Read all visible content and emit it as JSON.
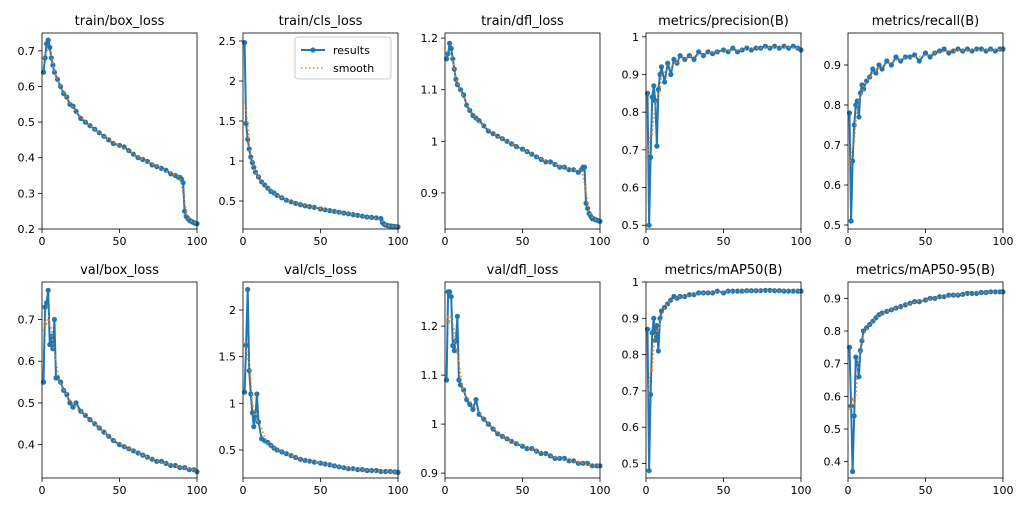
{
  "colors": {
    "results": "#1f77b4",
    "smooth": "#ff7f0e"
  },
  "legend": {
    "results": "results",
    "smooth": "smooth"
  },
  "chart_data": [
    {
      "type": "line",
      "title": "train/box_loss",
      "xlim": [
        0,
        100
      ],
      "ylim": [
        0.2,
        0.75
      ],
      "xticks": [
        0,
        50,
        100
      ],
      "yticks": [
        0.2,
        0.3,
        0.4,
        0.5,
        0.6,
        0.7
      ],
      "x": [
        1,
        2,
        3,
        4,
        5,
        6,
        7,
        8,
        10,
        12,
        14,
        16,
        18,
        20,
        22,
        25,
        28,
        31,
        34,
        37,
        40,
        43,
        46,
        50,
        53,
        56,
        59,
        62,
        65,
        68,
        71,
        74,
        77,
        80,
        83,
        86,
        88,
        89,
        90,
        91,
        92,
        93,
        94,
        95,
        96,
        97,
        98,
        99,
        100
      ],
      "series": [
        {
          "name": "results",
          "values": [
            0.64,
            0.68,
            0.72,
            0.73,
            0.71,
            0.68,
            0.66,
            0.64,
            0.62,
            0.6,
            0.58,
            0.57,
            0.55,
            0.545,
            0.53,
            0.51,
            0.5,
            0.49,
            0.48,
            0.47,
            0.46,
            0.45,
            0.44,
            0.435,
            0.43,
            0.42,
            0.41,
            0.4,
            0.395,
            0.39,
            0.38,
            0.375,
            0.37,
            0.365,
            0.355,
            0.35,
            0.345,
            0.345,
            0.34,
            0.33,
            0.25,
            0.235,
            0.23,
            0.225,
            0.222,
            0.22,
            0.218,
            0.216,
            0.215
          ]
        }
      ]
    },
    {
      "type": "line",
      "title": "train/cls_loss",
      "xlim": [
        0,
        100
      ],
      "ylim": [
        0.15,
        2.6
      ],
      "xticks": [
        0,
        50,
        100
      ],
      "yticks": [
        0.5,
        1.0,
        1.5,
        2.0,
        2.5
      ],
      "x": [
        1,
        2,
        3,
        4,
        5,
        6,
        7,
        8,
        10,
        12,
        14,
        16,
        18,
        20,
        22,
        25,
        28,
        31,
        34,
        37,
        40,
        43,
        46,
        50,
        53,
        56,
        59,
        62,
        65,
        68,
        71,
        74,
        77,
        80,
        83,
        86,
        89,
        90,
        91,
        92,
        93,
        94,
        95,
        96,
        97,
        98,
        99,
        100
      ],
      "series": [
        {
          "name": "results",
          "values": [
            2.48,
            1.47,
            1.27,
            1.15,
            1.05,
            0.98,
            0.92,
            0.86,
            0.8,
            0.74,
            0.7,
            0.66,
            0.62,
            0.6,
            0.57,
            0.54,
            0.51,
            0.49,
            0.47,
            0.455,
            0.44,
            0.43,
            0.42,
            0.4,
            0.39,
            0.38,
            0.37,
            0.36,
            0.35,
            0.34,
            0.33,
            0.32,
            0.31,
            0.3,
            0.295,
            0.29,
            0.28,
            0.23,
            0.21,
            0.2,
            0.195,
            0.19,
            0.188,
            0.185,
            0.183,
            0.18,
            0.178,
            0.175
          ]
        }
      ]
    },
    {
      "type": "line",
      "title": "train/dfl_loss",
      "xlim": [
        0,
        100
      ],
      "ylim": [
        0.83,
        1.21
      ],
      "xticks": [
        0,
        50,
        100
      ],
      "yticks": [
        0.9,
        1.0,
        1.1,
        1.2
      ],
      "x": [
        1,
        2,
        3,
        4,
        5,
        6,
        7,
        8,
        10,
        12,
        14,
        16,
        18,
        20,
        22,
        25,
        28,
        31,
        34,
        37,
        40,
        43,
        46,
        50,
        53,
        56,
        59,
        62,
        65,
        68,
        71,
        74,
        77,
        80,
        83,
        86,
        88,
        89,
        90,
        91,
        92,
        93,
        94,
        95,
        96,
        97,
        98,
        99,
        100
      ],
      "series": [
        {
          "name": "results",
          "values": [
            1.16,
            1.17,
            1.19,
            1.18,
            1.16,
            1.14,
            1.12,
            1.11,
            1.1,
            1.09,
            1.07,
            1.06,
            1.05,
            1.045,
            1.04,
            1.03,
            1.02,
            1.015,
            1.01,
            1.005,
            1.0,
            0.995,
            0.99,
            0.985,
            0.98,
            0.975,
            0.97,
            0.965,
            0.96,
            0.96,
            0.955,
            0.95,
            0.95,
            0.945,
            0.945,
            0.94,
            0.945,
            0.95,
            0.95,
            0.88,
            0.87,
            0.86,
            0.855,
            0.85,
            0.85,
            0.848,
            0.847,
            0.846,
            0.845
          ]
        }
      ]
    },
    {
      "type": "line",
      "title": "metrics/precision(B)",
      "xlim": [
        0,
        100
      ],
      "ylim": [
        0.49,
        1.01
      ],
      "xticks": [
        0,
        50,
        100
      ],
      "yticks": [
        0.5,
        0.6,
        0.7,
        0.8,
        0.9,
        1.0
      ],
      "x": [
        1,
        2,
        3,
        4,
        5,
        6,
        7,
        8,
        9,
        10,
        12,
        14,
        16,
        18,
        20,
        22,
        25,
        28,
        31,
        34,
        37,
        40,
        43,
        46,
        50,
        53,
        56,
        59,
        62,
        65,
        68,
        71,
        74,
        77,
        80,
        83,
        86,
        89,
        92,
        95,
        98,
        100
      ],
      "series": [
        {
          "name": "results",
          "values": [
            0.85,
            0.5,
            0.68,
            0.84,
            0.87,
            0.83,
            0.71,
            0.86,
            0.9,
            0.92,
            0.88,
            0.93,
            0.9,
            0.94,
            0.93,
            0.95,
            0.94,
            0.95,
            0.94,
            0.96,
            0.95,
            0.96,
            0.955,
            0.96,
            0.965,
            0.96,
            0.97,
            0.96,
            0.965,
            0.97,
            0.965,
            0.97,
            0.97,
            0.975,
            0.97,
            0.975,
            0.97,
            0.975,
            0.97,
            0.975,
            0.97,
            0.965
          ]
        }
      ]
    },
    {
      "type": "line",
      "title": "metrics/recall(B)",
      "xlim": [
        0,
        100
      ],
      "ylim": [
        0.49,
        0.98
      ],
      "xticks": [
        0,
        50,
        100
      ],
      "yticks": [
        0.5,
        0.6,
        0.7,
        0.8,
        0.9
      ],
      "x": [
        1,
        2,
        3,
        4,
        5,
        6,
        7,
        8,
        9,
        10,
        12,
        14,
        16,
        18,
        20,
        22,
        25,
        28,
        31,
        34,
        37,
        40,
        43,
        46,
        50,
        53,
        56,
        59,
        62,
        65,
        68,
        71,
        74,
        77,
        80,
        83,
        86,
        89,
        92,
        95,
        98,
        100
      ],
      "series": [
        {
          "name": "results",
          "values": [
            0.78,
            0.51,
            0.66,
            0.75,
            0.8,
            0.81,
            0.77,
            0.83,
            0.85,
            0.84,
            0.86,
            0.87,
            0.89,
            0.88,
            0.9,
            0.89,
            0.91,
            0.9,
            0.92,
            0.91,
            0.92,
            0.92,
            0.925,
            0.91,
            0.93,
            0.92,
            0.93,
            0.935,
            0.94,
            0.93,
            0.935,
            0.94,
            0.935,
            0.94,
            0.935,
            0.94,
            0.94,
            0.935,
            0.94,
            0.935,
            0.94,
            0.94
          ]
        }
      ]
    },
    {
      "type": "line",
      "title": "val/box_loss",
      "xlim": [
        0,
        100
      ],
      "ylim": [
        0.32,
        0.79
      ],
      "xticks": [
        0,
        50,
        100
      ],
      "yticks": [
        0.4,
        0.5,
        0.6,
        0.7
      ],
      "x": [
        1,
        2,
        3,
        4,
        5,
        6,
        7,
        8,
        9,
        10,
        12,
        14,
        16,
        18,
        20,
        22,
        25,
        28,
        31,
        34,
        37,
        40,
        43,
        46,
        50,
        53,
        56,
        59,
        62,
        65,
        68,
        71,
        74,
        77,
        80,
        83,
        86,
        89,
        92,
        95,
        98,
        100
      ],
      "series": [
        {
          "name": "results",
          "values": [
            0.55,
            0.73,
            0.74,
            0.77,
            0.64,
            0.66,
            0.63,
            0.7,
            0.56,
            0.56,
            0.55,
            0.53,
            0.52,
            0.5,
            0.49,
            0.5,
            0.48,
            0.47,
            0.46,
            0.45,
            0.44,
            0.43,
            0.42,
            0.41,
            0.4,
            0.395,
            0.39,
            0.385,
            0.38,
            0.375,
            0.37,
            0.365,
            0.36,
            0.36,
            0.355,
            0.35,
            0.35,
            0.345,
            0.345,
            0.34,
            0.34,
            0.335
          ]
        }
      ]
    },
    {
      "type": "line",
      "title": "val/cls_loss",
      "xlim": [
        0,
        100
      ],
      "ylim": [
        0.2,
        2.3
      ],
      "xticks": [
        0,
        50,
        100
      ],
      "yticks": [
        0.5,
        1.0,
        1.5,
        2.0
      ],
      "x": [
        1,
        2,
        3,
        4,
        5,
        6,
        7,
        8,
        9,
        10,
        12,
        14,
        16,
        18,
        20,
        22,
        25,
        28,
        31,
        34,
        37,
        40,
        43,
        46,
        50,
        53,
        56,
        59,
        62,
        65,
        68,
        71,
        74,
        77,
        80,
        83,
        86,
        89,
        92,
        95,
        98,
        100
      ],
      "series": [
        {
          "name": "results",
          "values": [
            1.12,
            1.62,
            2.22,
            1.35,
            1.1,
            0.9,
            0.75,
            0.85,
            1.1,
            0.8,
            0.62,
            0.6,
            0.58,
            0.55,
            0.52,
            0.5,
            0.48,
            0.46,
            0.44,
            0.42,
            0.4,
            0.39,
            0.38,
            0.37,
            0.36,
            0.35,
            0.34,
            0.33,
            0.32,
            0.31,
            0.3,
            0.3,
            0.29,
            0.29,
            0.28,
            0.28,
            0.28,
            0.27,
            0.27,
            0.27,
            0.265,
            0.26
          ]
        }
      ]
    },
    {
      "type": "line",
      "title": "val/dfl_loss",
      "xlim": [
        0,
        100
      ],
      "ylim": [
        0.89,
        1.29
      ],
      "xticks": [
        0,
        50,
        100
      ],
      "yticks": [
        0.9,
        1.0,
        1.1,
        1.2
      ],
      "x": [
        1,
        2,
        3,
        4,
        5,
        6,
        7,
        8,
        9,
        10,
        12,
        14,
        16,
        18,
        20,
        22,
        25,
        28,
        31,
        34,
        37,
        40,
        43,
        46,
        50,
        53,
        56,
        59,
        62,
        65,
        68,
        71,
        74,
        77,
        80,
        83,
        86,
        89,
        92,
        95,
        98,
        100
      ],
      "series": [
        {
          "name": "results",
          "values": [
            1.09,
            1.27,
            1.27,
            1.26,
            1.16,
            1.15,
            1.17,
            1.22,
            1.09,
            1.08,
            1.07,
            1.05,
            1.04,
            1.03,
            1.05,
            1.02,
            1.01,
            1.0,
            0.99,
            0.98,
            0.975,
            0.97,
            0.965,
            0.96,
            0.955,
            0.95,
            0.95,
            0.945,
            0.94,
            0.94,
            0.935,
            0.93,
            0.93,
            0.93,
            0.925,
            0.925,
            0.92,
            0.92,
            0.92,
            0.915,
            0.915,
            0.915
          ]
        }
      ]
    },
    {
      "type": "line",
      "title": "metrics/mAP50(B)",
      "xlim": [
        0,
        100
      ],
      "ylim": [
        0.46,
        1.0
      ],
      "xticks": [
        0,
        50,
        100
      ],
      "yticks": [
        0.5,
        0.6,
        0.7,
        0.8,
        0.9,
        1.0
      ],
      "x": [
        1,
        2,
        3,
        4,
        5,
        6,
        7,
        8,
        9,
        10,
        12,
        14,
        16,
        18,
        20,
        22,
        25,
        28,
        31,
        34,
        37,
        40,
        43,
        46,
        50,
        53,
        56,
        59,
        62,
        65,
        68,
        71,
        74,
        77,
        80,
        83,
        86,
        89,
        92,
        95,
        98,
        100
      ],
      "series": [
        {
          "name": "results",
          "values": [
            0.87,
            0.48,
            0.69,
            0.86,
            0.9,
            0.84,
            0.88,
            0.81,
            0.9,
            0.92,
            0.93,
            0.94,
            0.95,
            0.96,
            0.955,
            0.96,
            0.96,
            0.965,
            0.965,
            0.97,
            0.97,
            0.97,
            0.97,
            0.975,
            0.97,
            0.975,
            0.975,
            0.975,
            0.975,
            0.976,
            0.976,
            0.976,
            0.976,
            0.977,
            0.977,
            0.976,
            0.976,
            0.975,
            0.975,
            0.975,
            0.975,
            0.975
          ]
        }
      ]
    },
    {
      "type": "line",
      "title": "metrics/mAP50-95(B)",
      "xlim": [
        0,
        100
      ],
      "ylim": [
        0.35,
        0.95
      ],
      "xticks": [
        0,
        50,
        100
      ],
      "yticks": [
        0.4,
        0.5,
        0.6,
        0.7,
        0.8,
        0.9
      ],
      "x": [
        1,
        2,
        3,
        4,
        5,
        6,
        7,
        8,
        9,
        10,
        12,
        14,
        16,
        18,
        20,
        22,
        25,
        28,
        31,
        34,
        37,
        40,
        43,
        46,
        50,
        53,
        56,
        59,
        62,
        65,
        68,
        71,
        74,
        77,
        80,
        83,
        86,
        89,
        92,
        95,
        98,
        100
      ],
      "series": [
        {
          "name": "results",
          "values": [
            0.75,
            0.57,
            0.37,
            0.54,
            0.72,
            0.7,
            0.66,
            0.74,
            0.77,
            0.8,
            0.81,
            0.82,
            0.83,
            0.84,
            0.85,
            0.855,
            0.86,
            0.865,
            0.87,
            0.875,
            0.88,
            0.885,
            0.89,
            0.89,
            0.895,
            0.9,
            0.9,
            0.905,
            0.905,
            0.91,
            0.91,
            0.91,
            0.912,
            0.915,
            0.915,
            0.915,
            0.918,
            0.918,
            0.92,
            0.92,
            0.92,
            0.92
          ]
        }
      ]
    }
  ]
}
